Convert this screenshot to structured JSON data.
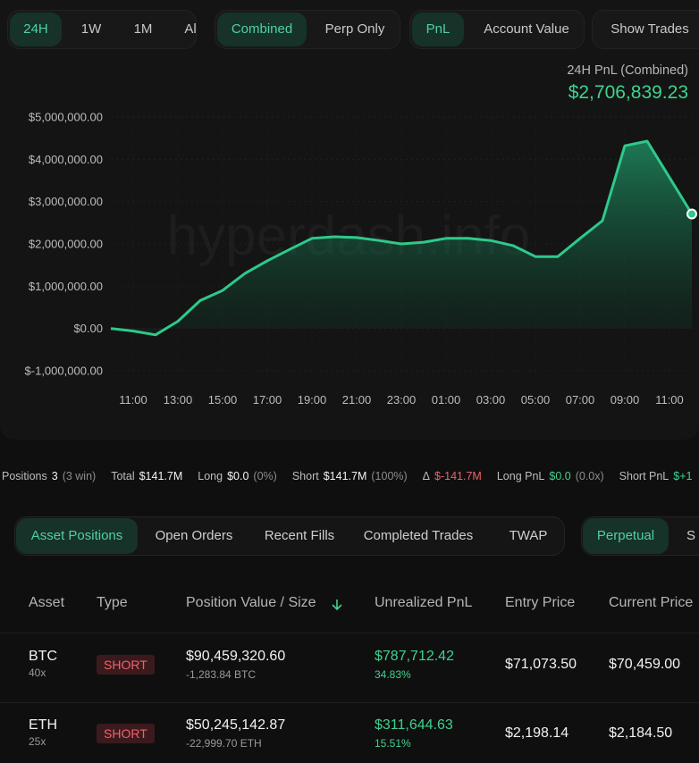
{
  "timeframe_tabs": [
    "24H",
    "1W",
    "1M",
    "Al"
  ],
  "mode_tabs": [
    "Combined",
    "Perp Only"
  ],
  "metric_tabs": [
    "PnL",
    "Account Value"
  ],
  "show_trades": "Show Trades",
  "watermark": "hyperdash.info",
  "chart_data": {
    "type": "line",
    "title": "24H PnL (Combined)",
    "subtitle": "$2,706,839.23",
    "categories": [
      null,
      "11:00",
      null,
      "13:00",
      null,
      "15:00",
      null,
      "17:00",
      null,
      "19:00",
      null,
      "21:00",
      null,
      "23:00",
      null,
      "01:00",
      null,
      "03:00",
      null,
      "05:00",
      null,
      "07:00",
      null,
      "09:00",
      null,
      "11:00",
      null
    ],
    "series": [
      {
        "name": "PnL",
        "color": "#2ec98a",
        "values": [
          0,
          -60000,
          -150000,
          170000,
          660000,
          900000,
          1300000,
          1600000,
          1870000,
          2130000,
          2170000,
          2150000,
          2080000,
          2000000,
          2040000,
          2130000,
          2130000,
          2080000,
          1960000,
          1700000,
          1700000,
          2130000,
          2550000,
          4320000,
          4430000,
          3570000,
          2706839.23
        ]
      }
    ],
    "ylim": [
      -1000000,
      5000000
    ],
    "yticks": [
      {
        "value": -1000000,
        "label": "$-1,000,000.00"
      },
      {
        "value": 0,
        "label": "$0.00"
      },
      {
        "value": 1000000,
        "label": "$1,000,000.00"
      },
      {
        "value": 2000000,
        "label": "$2,000,000.00"
      },
      {
        "value": 3000000,
        "label": "$3,000,000.00"
      },
      {
        "value": 4000000,
        "label": "$4,000,000.00"
      },
      {
        "value": 5000000,
        "label": "$5,000,000.00"
      }
    ],
    "grid": true
  },
  "stats": [
    {
      "label": "Positions",
      "value": "3",
      "note": "(3 win)"
    },
    {
      "label": "Total",
      "value": "$141.7M"
    },
    {
      "label": "Long",
      "value": "$0.0",
      "note": "(0%)"
    },
    {
      "label": "Short",
      "value": "$141.7M",
      "note": "(100%)"
    },
    {
      "label": "Δ",
      "value": "$-141.7M"
    },
    {
      "label": "Long PnL",
      "value": "$0.0",
      "note": "(0.0x)"
    },
    {
      "label": "Short PnL",
      "value": "$+1"
    }
  ],
  "position_tabs": [
    "Asset Positions",
    "Open Orders",
    "Recent Fills",
    "Completed Trades",
    "TWAP"
  ],
  "market_tabs": [
    "Perpetual",
    "S"
  ],
  "table": {
    "headers": [
      "Asset",
      "Type",
      "Position Value / Size",
      "Unrealized PnL",
      "Entry Price",
      "Current Price"
    ],
    "rows": [
      {
        "asset": "BTC",
        "leverage": "40x",
        "type": "SHORT",
        "value": "$90,459,320.60",
        "size": "-1,283.84 BTC",
        "pnl": "$787,712.42",
        "pnl_pct": "34.83%",
        "entry": "$71,073.50",
        "current": "$70,459.00"
      },
      {
        "asset": "ETH",
        "leverage": "25x",
        "type": "SHORT",
        "value": "$50,245,142.87",
        "size": "-22,999.70 ETH",
        "pnl": "$311,644.63",
        "pnl_pct": "15.51%",
        "entry": "$2,198.14",
        "current": "$2,184.50"
      }
    ]
  }
}
